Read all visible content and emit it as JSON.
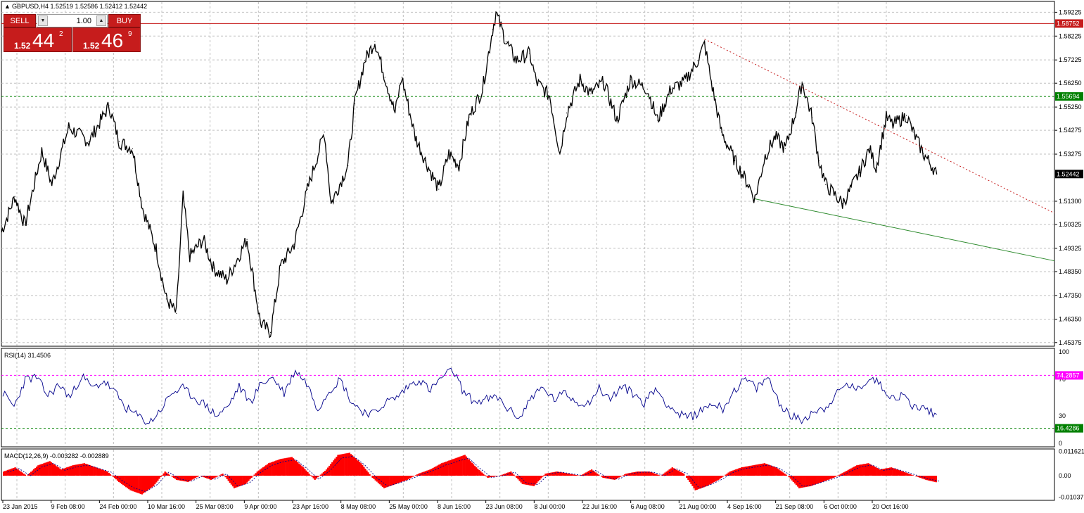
{
  "header": {
    "symbol_line": "GBPUSD,H4  1.52519 1.52586 1.52412 1.52442"
  },
  "trade_panel": {
    "sell_label": "SELL",
    "buy_label": "BUY",
    "lot_value": "1.00",
    "bid_prefix": "1.52",
    "bid_big": "44",
    "bid_sup": "2",
    "ask_prefix": "1.52",
    "ask_big": "46",
    "ask_sup": "9"
  },
  "colors": {
    "background": "#ffffff",
    "grid": "#c0c0c0",
    "candles": "#000000",
    "rsi_line": "#00008b",
    "macd_hist": "#ff0000",
    "macd_signal": "#00008b",
    "resistance_line": "#c0392b",
    "support_line": "#2e8b2e",
    "trade_red": "#c61c1c",
    "level_green": "#008000",
    "level_magenta": "#ff00ff"
  },
  "chart_data": [
    {
      "type": "line",
      "panel": "price",
      "symbol": "GBPUSD",
      "timeframe": "H4",
      "ohlc_last": {
        "open": 1.52519,
        "high": 1.52586,
        "low": 1.52412,
        "close": 1.52442
      },
      "y_ticks": [
        "1.59225",
        "1.58225",
        "1.57225",
        "1.56250",
        "1.55250",
        "1.54275",
        "1.53275",
        "1.51300",
        "1.50325",
        "1.49325",
        "1.48350",
        "1.47350",
        "1.46350",
        "1.45375"
      ],
      "ylim": [
        1.4525,
        1.5965
      ],
      "price_tags": [
        {
          "label": "1.58752",
          "value": 1.58752,
          "color": "#c61c1c"
        },
        {
          "label": "1.55694",
          "value": 1.55694,
          "color": "#008000"
        },
        {
          "label": "1.52442",
          "value": 1.52442,
          "color": "#000000"
        }
      ],
      "x_labels": [
        "23 Jan 2015",
        "9 Feb 08:00",
        "24 Feb 00:00",
        "10 Mar 16:00",
        "25 Mar 08:00",
        "9 Apr 00:00",
        "23 Apr 16:00",
        "8 May 08:00",
        "25 May 00:00",
        "8 Jun 16:00",
        "23 Jun 08:00",
        "8 Jul 00:00",
        "22 Jul 16:00",
        "6 Aug 08:00",
        "21 Aug 00:00",
        "4 Sep 16:00",
        "21 Sep 08:00",
        "6 Oct 00:00",
        "20 Oct 16:00"
      ],
      "series": [
        {
          "points": [
            {
              "x": "2015-01-23",
              "y": 1.5
            },
            {
              "x": "2015-01-27",
              "y": 1.515
            },
            {
              "x": "2015-01-30",
              "y": 1.503
            },
            {
              "x": "2015-02-04",
              "y": 1.534
            },
            {
              "x": "2015-02-07",
              "y": 1.52
            },
            {
              "x": "2015-02-12",
              "y": 1.544
            },
            {
              "x": "2015-02-18",
              "y": 1.538
            },
            {
              "x": "2015-02-24",
              "y": 1.553
            },
            {
              "x": "2015-02-27",
              "y": 1.538
            },
            {
              "x": "2015-03-03",
              "y": 1.535
            },
            {
              "x": "2015-03-06",
              "y": 1.51
            },
            {
              "x": "2015-03-10",
              "y": 1.493
            },
            {
              "x": "2015-03-13",
              "y": 1.472
            },
            {
              "x": "2015-03-16",
              "y": 1.466
            },
            {
              "x": "2015-03-18",
              "y": 1.515
            },
            {
              "x": "2015-03-20",
              "y": 1.49
            },
            {
              "x": "2015-03-24",
              "y": 1.497
            },
            {
              "x": "2015-03-27",
              "y": 1.485
            },
            {
              "x": "2015-03-31",
              "y": 1.48
            },
            {
              "x": "2015-04-06",
              "y": 1.497
            },
            {
              "x": "2015-04-10",
              "y": 1.462
            },
            {
              "x": "2015-04-13",
              "y": 1.458
            },
            {
              "x": "2015-04-16",
              "y": 1.486
            },
            {
              "x": "2015-04-20",
              "y": 1.495
            },
            {
              "x": "2015-04-24",
              "y": 1.518
            },
            {
              "x": "2015-04-29",
              "y": 1.542
            },
            {
              "x": "2015-05-01",
              "y": 1.512
            },
            {
              "x": "2015-05-06",
              "y": 1.528
            },
            {
              "x": "2015-05-08",
              "y": 1.554
            },
            {
              "x": "2015-05-11",
              "y": 1.572
            },
            {
              "x": "2015-05-14",
              "y": 1.58
            },
            {
              "x": "2015-05-17",
              "y": 1.565
            },
            {
              "x": "2015-05-20",
              "y": 1.55
            },
            {
              "x": "2015-05-22",
              "y": 1.565
            },
            {
              "x": "2015-05-26",
              "y": 1.54
            },
            {
              "x": "2015-05-29",
              "y": 1.53
            },
            {
              "x": "2015-06-02",
              "y": 1.518
            },
            {
              "x": "2015-06-05",
              "y": 1.533
            },
            {
              "x": "2015-06-08",
              "y": 1.528
            },
            {
              "x": "2015-06-11",
              "y": 1.548
            },
            {
              "x": "2015-06-15",
              "y": 1.56
            },
            {
              "x": "2015-06-18",
              "y": 1.585
            },
            {
              "x": "2015-06-19",
              "y": 1.592
            },
            {
              "x": "2015-06-22",
              "y": 1.58
            },
            {
              "x": "2015-06-25",
              "y": 1.572
            },
            {
              "x": "2015-06-29",
              "y": 1.575
            },
            {
              "x": "2015-07-01",
              "y": 1.563
            },
            {
              "x": "2015-07-05",
              "y": 1.557
            },
            {
              "x": "2015-07-08",
              "y": 1.533
            },
            {
              "x": "2015-07-10",
              "y": 1.55
            },
            {
              "x": "2015-07-14",
              "y": 1.564
            },
            {
              "x": "2015-07-17",
              "y": 1.558
            },
            {
              "x": "2015-07-21",
              "y": 1.563
            },
            {
              "x": "2015-07-25",
              "y": 1.547
            },
            {
              "x": "2015-07-29",
              "y": 1.564
            },
            {
              "x": "2015-08-03",
              "y": 1.56
            },
            {
              "x": "2015-08-06",
              "y": 1.547
            },
            {
              "x": "2015-08-10",
              "y": 1.56
            },
            {
              "x": "2015-08-14",
              "y": 1.563
            },
            {
              "x": "2015-08-18",
              "y": 1.572
            },
            {
              "x": "2015-08-20",
              "y": 1.579
            },
            {
              "x": "2015-08-22",
              "y": 1.563
            },
            {
              "x": "2015-08-25",
              "y": 1.542
            },
            {
              "x": "2015-08-29",
              "y": 1.53
            },
            {
              "x": "2015-09-02",
              "y": 1.52
            },
            {
              "x": "2015-09-04",
              "y": 1.514
            },
            {
              "x": "2015-09-07",
              "y": 1.532
            },
            {
              "x": "2015-09-10",
              "y": 1.54
            },
            {
              "x": "2015-09-13",
              "y": 1.535
            },
            {
              "x": "2015-09-16",
              "y": 1.55
            },
            {
              "x": "2015-09-18",
              "y": 1.563
            },
            {
              "x": "2015-09-21",
              "y": 1.548
            },
            {
              "x": "2015-09-23",
              "y": 1.53
            },
            {
              "x": "2015-09-25",
              "y": 1.52
            },
            {
              "x": "2015-09-30",
              "y": 1.512
            },
            {
              "x": "2015-10-02",
              "y": 1.517
            },
            {
              "x": "2015-10-05",
              "y": 1.525
            },
            {
              "x": "2015-10-08",
              "y": 1.535
            },
            {
              "x": "2015-10-10",
              "y": 1.527
            },
            {
              "x": "2015-10-13",
              "y": 1.548
            },
            {
              "x": "2015-10-15",
              "y": 1.545
            },
            {
              "x": "2015-10-19",
              "y": 1.549
            },
            {
              "x": "2015-10-21",
              "y": 1.542
            },
            {
              "x": "2015-10-24",
              "y": 1.533
            },
            {
              "x": "2015-10-27",
              "y": 1.527
            },
            {
              "x": "2015-10-28",
              "y": 1.5244
            }
          ]
        }
      ],
      "trendlines": [
        {
          "style": "dotted",
          "color": "#c61c1c",
          "from": {
            "x": "2015-08-20",
            "y": 1.581
          },
          "to": {
            "x": "2015-12-02",
            "y": 1.508
          }
        },
        {
          "style": "solid",
          "color": "#2e8b2e",
          "from": {
            "x": "2015-09-04",
            "y": 1.514
          },
          "to": {
            "x": "2015-12-02",
            "y": 1.488
          }
        }
      ],
      "grid": true
    },
    {
      "type": "line",
      "panel": "rsi",
      "title": "RSI(14) 31.4506",
      "current_value": 31.4506,
      "ylim": [
        0,
        100
      ],
      "y_ticks": [
        "100",
        "70",
        "30",
        "0"
      ],
      "levels": [
        {
          "label": "74.2857",
          "value": 74.2857,
          "color": "#ff00ff"
        },
        {
          "label": "16.4286",
          "value": 16.4286,
          "color": "#008000"
        }
      ],
      "series": [
        {
          "values": [
            55,
            40,
            70,
            72,
            52,
            64,
            50,
            74,
            60,
            68,
            55,
            38,
            30,
            22,
            36,
            55,
            60,
            50,
            42,
            30,
            40,
            62,
            45,
            66,
            72,
            55,
            80,
            66,
            38,
            58,
            70,
            45,
            35,
            32,
            45,
            50,
            62,
            70,
            58,
            72,
            80,
            55,
            45,
            48,
            50,
            36,
            28,
            52,
            60,
            48,
            55,
            45,
            44,
            60,
            48,
            62,
            55,
            44,
            60,
            44,
            32,
            28,
            35,
            44,
            38,
            58,
            70,
            60,
            72,
            45,
            30,
            25,
            35,
            38,
            52,
            65,
            58,
            72,
            65,
            50,
            52,
            40,
            38,
            31.45
          ]
        }
      ],
      "grid": true
    },
    {
      "type": "area",
      "panel": "macd",
      "title": "MACD(12,26,9) -0.003282 -0.002889",
      "current_value": -0.003282,
      "current_signal": -0.002889,
      "ylim": [
        -0.0115,
        0.0125
      ],
      "y_ticks": [
        "0.011621",
        "0.00",
        "-0.01037"
      ],
      "series": [
        {
          "values": [
            0.002,
            0.004,
            0.0,
            0.005,
            0.007,
            0.003,
            0.005,
            0.006,
            0.004,
            0.002,
            -0.003,
            -0.007,
            -0.009,
            -0.005,
            0.002,
            -0.002,
            -0.003,
            0.0,
            -0.002,
            0.001,
            -0.006,
            -0.004,
            0.002,
            0.006,
            0.008,
            0.009,
            0.004,
            -0.002,
            0.003,
            0.01,
            0.011,
            0.006,
            -0.001,
            -0.006,
            -0.004,
            -0.002,
            0.001,
            0.003,
            0.006,
            0.008,
            0.01,
            0.004,
            -0.001,
            0.0,
            0.002,
            -0.004,
            -0.005,
            0.001,
            0.002,
            0.001,
            0.0,
            0.003,
            -0.001,
            -0.002,
            0.001,
            0.002,
            0.002,
            0.0,
            0.004,
            0.001,
            -0.007,
            -0.005,
            -0.002,
            0.002,
            0.004,
            0.005,
            0.006,
            0.004,
            0.0,
            -0.006,
            -0.005,
            -0.003,
            -0.001,
            0.002,
            0.005,
            0.006,
            0.003,
            0.004,
            0.002,
            0.0,
            -0.002,
            -0.0033
          ]
        }
      ],
      "grid": true
    }
  ]
}
